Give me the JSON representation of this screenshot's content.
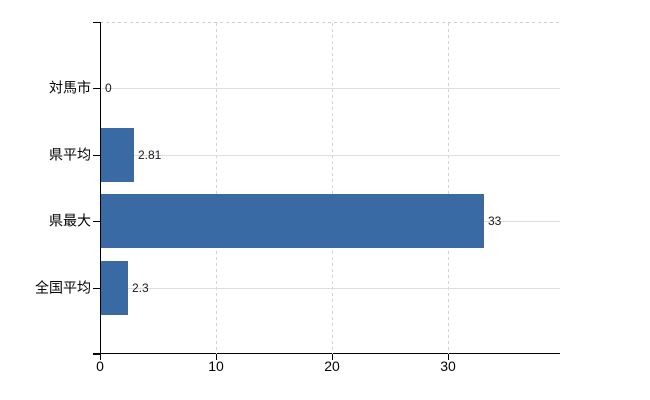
{
  "chart_data": {
    "type": "bar",
    "orientation": "horizontal",
    "title": "",
    "xlabel": "",
    "ylabel": "",
    "categories": [
      "対馬市",
      "県平均",
      "県最大",
      "全国平均"
    ],
    "values": [
      0,
      2.81,
      33,
      2.3
    ],
    "value_labels": [
      "0",
      "2.81",
      "33",
      "2.3"
    ],
    "x_tick_labels": [
      "0",
      "10",
      "20",
      "30"
    ],
    "x_tick_values": [
      0,
      10,
      20,
      30
    ],
    "xlim": [
      0,
      39.6
    ],
    "legend": "none",
    "grid": {
      "vertical_gridlines": "dashed",
      "row_gridlines": "solid",
      "top_border": "dashed"
    },
    "colors": {
      "bar": "#3a6aa4",
      "axis": "#000000",
      "vertical_grid": "#d2d2d2",
      "row_grid": "#d9e0d4",
      "text": "#1a1a1a"
    }
  }
}
